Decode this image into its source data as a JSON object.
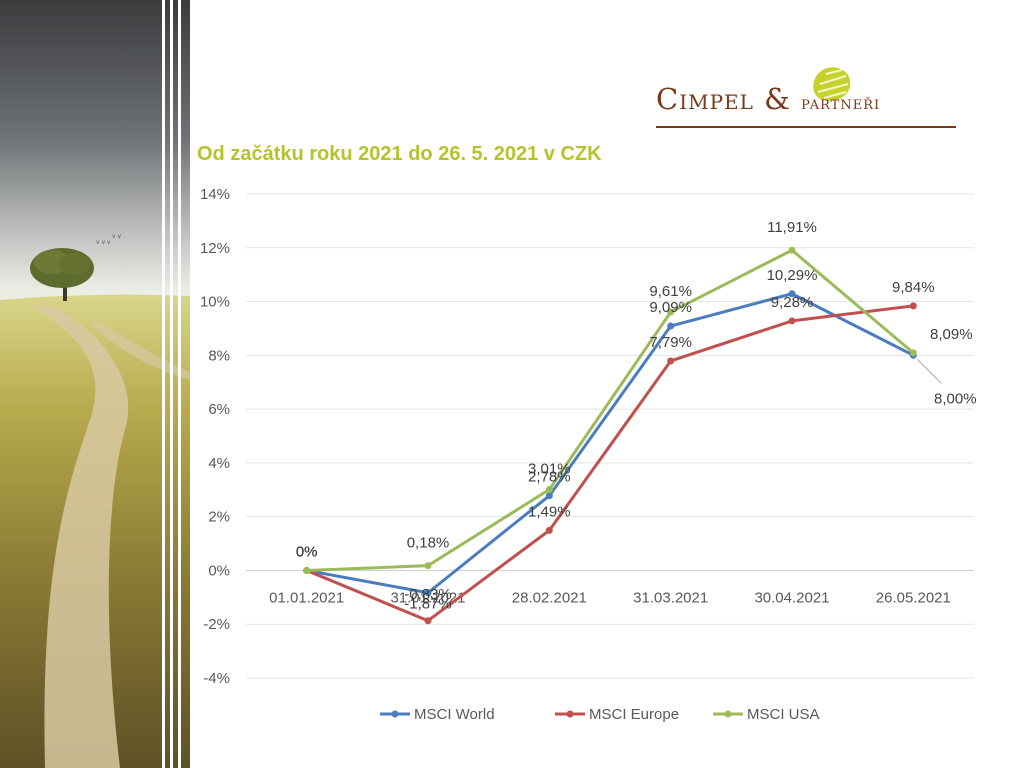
{
  "logo": {
    "name_main": "Cimpel",
    "ampersand": "&",
    "name_partner": "partneři"
  },
  "chart_data": {
    "type": "line",
    "title": "Od začátku roku 2021 do 26. 5. 2021 v CZK",
    "categories": [
      "01.01.2021",
      "31.01.2021",
      "28.02.2021",
      "31.03.2021",
      "30.04.2021",
      "26.05.2021"
    ],
    "ylim": [
      -4,
      14
    ],
    "yticks": [
      -4,
      -2,
      0,
      2,
      4,
      6,
      8,
      10,
      12,
      14
    ],
    "ytick_labels": [
      "-4%",
      "-2%",
      "0%",
      "2%",
      "4%",
      "6%",
      "8%",
      "10%",
      "12%",
      "14%"
    ],
    "grid": true,
    "legend_position": "bottom",
    "series": [
      {
        "key": "world",
        "name": "MSCI World",
        "color": "#4a7dbf",
        "values": [
          0,
          -0.83,
          2.78,
          9.09,
          10.29,
          8.0
        ],
        "labels": [
          "0%",
          "-0,83%",
          "2,78%",
          "9,09%",
          "10,29%",
          "8,00%"
        ]
      },
      {
        "key": "europe",
        "name": "MSCI Europe",
        "color": "#c0504d",
        "values": [
          0,
          -1.87,
          1.49,
          7.79,
          9.28,
          9.84
        ],
        "labels": [
          "0%",
          "-1,87%",
          "1,49%",
          "7,79%",
          "9,28%",
          "9,84%"
        ]
      },
      {
        "key": "usa",
        "name": "MSCI USA",
        "color": "#9bbb59",
        "values": [
          0,
          0.18,
          3.01,
          9.61,
          11.91,
          8.09
        ],
        "labels": [
          "0%",
          "0,18%",
          "3,01%",
          "9,61%",
          "11,91%",
          "8,09%"
        ]
      }
    ]
  }
}
